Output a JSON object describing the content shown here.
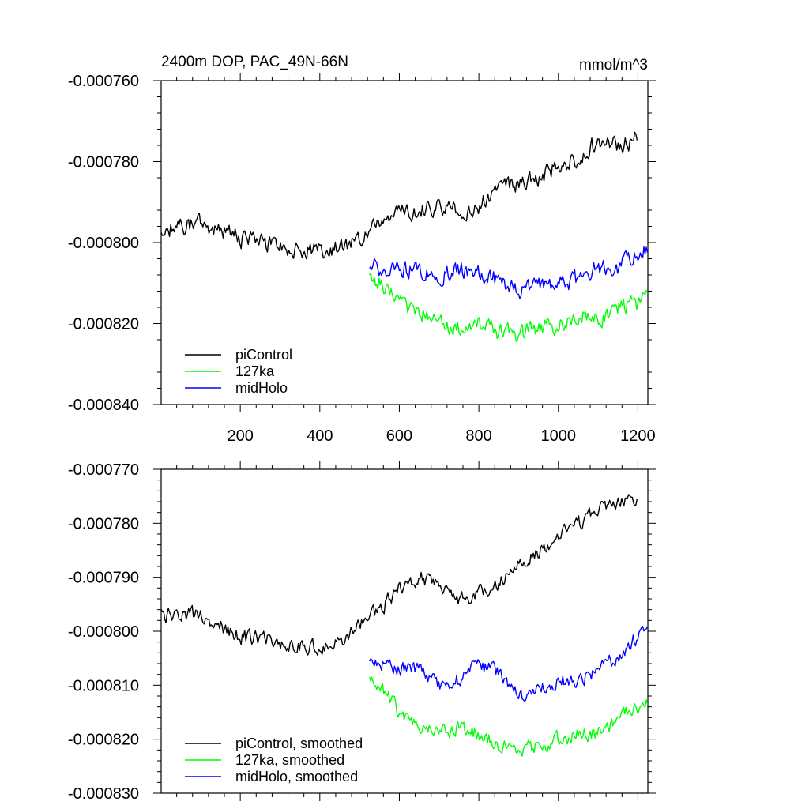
{
  "chart_data": [
    {
      "type": "line",
      "title": "2400m DOP, PAC_49N-66N",
      "units": "mmol/m^3",
      "xlim": [
        1,
        1225
      ],
      "ylim": [
        -0.00084,
        -0.00076
      ],
      "xticks": [
        200,
        400,
        600,
        800,
        1000,
        1200
      ],
      "xtick_labels": [
        "200",
        "400",
        "600",
        "800",
        "1000",
        "1200"
      ],
      "yticks": [
        -0.00076,
        -0.00078,
        -0.0008,
        -0.00082,
        -0.00084
      ],
      "ytick_labels": [
        "-0.000760",
        "-0.000780",
        "-0.000800",
        "-0.000820",
        "-0.000840"
      ],
      "legend_position": "bottom-left",
      "series": [
        {
          "name": "piControl",
          "color": "#000000",
          "x": [
            1,
            100,
            200,
            300,
            400,
            450,
            500,
            550,
            600,
            650,
            700,
            750,
            800,
            850,
            900,
            950,
            1000,
            1050,
            1100,
            1150,
            1200
          ],
          "y": [
            -0.000797,
            -0.000795,
            -0.000799,
            -0.000801,
            -0.000802,
            -0.000801,
            -0.000799,
            -0.000796,
            -0.000793,
            -0.000792,
            -0.000791,
            -0.000792,
            -0.000791,
            -0.000787,
            -0.000785,
            -0.000784,
            -0.000781,
            -0.000779,
            -0.000775,
            -0.000776,
            -0.000774
          ]
        },
        {
          "name": "127ka",
          "color": "#00ff00",
          "x": [
            525,
            550,
            600,
            650,
            700,
            750,
            800,
            850,
            900,
            950,
            1000,
            1050,
            1100,
            1150,
            1200,
            1225
          ],
          "y": [
            -0.000809,
            -0.00081,
            -0.000815,
            -0.000817,
            -0.00082,
            -0.000821,
            -0.00082,
            -0.000822,
            -0.000823,
            -0.000821,
            -0.00082,
            -0.000818,
            -0.000819,
            -0.000816,
            -0.000815,
            -0.000813
          ]
        },
        {
          "name": "midHolo",
          "color": "#0000ff",
          "x": [
            525,
            550,
            600,
            650,
            700,
            750,
            800,
            850,
            900,
            950,
            1000,
            1050,
            1100,
            1150,
            1200,
            1225
          ],
          "y": [
            -0.000805,
            -0.000806,
            -0.000806,
            -0.000807,
            -0.000808,
            -0.000807,
            -0.000808,
            -0.000809,
            -0.000812,
            -0.000811,
            -0.00081,
            -0.000809,
            -0.000806,
            -0.000806,
            -0.000802,
            -0.000802
          ]
        }
      ]
    },
    {
      "type": "line",
      "xlim": [
        1,
        1225
      ],
      "ylim": [
        -0.00083,
        -0.00077
      ],
      "xticks": [
        200,
        400,
        600,
        800,
        1000,
        1200
      ],
      "yticks": [
        -0.00077,
        -0.00078,
        -0.00079,
        -0.0008,
        -0.00081,
        -0.00082,
        -0.00083
      ],
      "ytick_labels": [
        "-0.000770",
        "-0.000780",
        "-0.000790",
        "-0.000800",
        "-0.000810",
        "-0.000820",
        "-0.000830"
      ],
      "legend_position": "bottom-left",
      "series": [
        {
          "name": "piControl, smoothed",
          "color": "#000000",
          "x": [
            1,
            100,
            200,
            300,
            400,
            450,
            500,
            550,
            600,
            650,
            700,
            750,
            800,
            850,
            900,
            950,
            1000,
            1050,
            1100,
            1150,
            1200
          ],
          "y": [
            -0.000797,
            -0.000797,
            -0.000801,
            -0.000802,
            -0.000803,
            -0.000802,
            -0.000799,
            -0.000796,
            -0.000792,
            -0.00079,
            -0.000792,
            -0.000794,
            -0.000793,
            -0.000791,
            -0.000787,
            -0.000786,
            -0.000782,
            -0.00078,
            -0.000777,
            -0.000776,
            -0.000776
          ]
        },
        {
          "name": "127ka, smoothed",
          "color": "#00ff00",
          "x": [
            525,
            550,
            600,
            650,
            700,
            750,
            800,
            850,
            900,
            950,
            1000,
            1050,
            1100,
            1150,
            1200,
            1225
          ],
          "y": [
            -0.000808,
            -0.00081,
            -0.000815,
            -0.000817,
            -0.000819,
            -0.000818,
            -0.000819,
            -0.000821,
            -0.000822,
            -0.000821,
            -0.00082,
            -0.000819,
            -0.000819,
            -0.000816,
            -0.000814,
            -0.000813
          ]
        },
        {
          "name": "midHolo, smoothed",
          "color": "#0000ff",
          "x": [
            525,
            550,
            600,
            650,
            700,
            750,
            800,
            850,
            900,
            950,
            1000,
            1050,
            1100,
            1150,
            1200,
            1225
          ],
          "y": [
            -0.000806,
            -0.000806,
            -0.000807,
            -0.000807,
            -0.00081,
            -0.000809,
            -0.000806,
            -0.000808,
            -0.000812,
            -0.000811,
            -0.000809,
            -0.000809,
            -0.000807,
            -0.000805,
            -0.000801,
            -0.000801
          ]
        }
      ]
    }
  ]
}
